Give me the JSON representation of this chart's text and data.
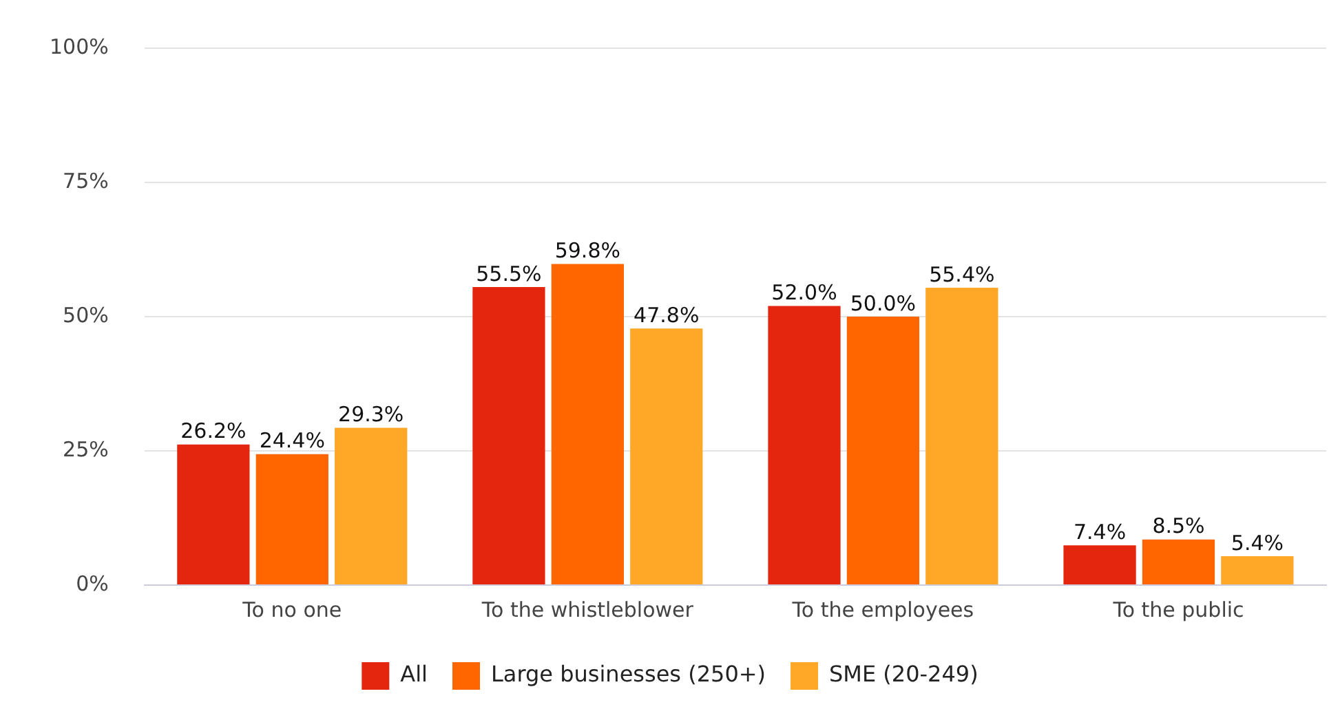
{
  "chart_data": {
    "type": "bar",
    "categories": [
      "To no one",
      "To the whistleblower",
      "To the employees",
      "To the public"
    ],
    "series": [
      {
        "name": "All",
        "color": "#e5260f",
        "values": [
          26.2,
          55.5,
          52.0,
          7.4
        ],
        "value_labels": [
          "26.2%",
          "55.5%",
          "52.0%",
          "7.4%"
        ]
      },
      {
        "name": "Large businesses (250+)",
        "color": "#ff6600",
        "values": [
          24.4,
          59.8,
          50.0,
          8.5
        ],
        "value_labels": [
          "24.4%",
          "59.8%",
          "50.0%",
          "8.5%"
        ]
      },
      {
        "name": "SME (20-249)",
        "color": "#ffa726",
        "values": [
          29.3,
          47.8,
          55.4,
          5.4
        ],
        "value_labels": [
          "29.3%",
          "47.8%",
          "55.4%",
          "5.4%"
        ]
      }
    ],
    "ylim": [
      0,
      100
    ],
    "yticks": [
      {
        "value": 0,
        "label": "0%"
      },
      {
        "value": 25,
        "label": "25%"
      },
      {
        "value": 50,
        "label": "50%"
      },
      {
        "value": 75,
        "label": "75%"
      },
      {
        "value": 100,
        "label": "100%"
      }
    ],
    "grid": "y",
    "legend": "bottom"
  }
}
